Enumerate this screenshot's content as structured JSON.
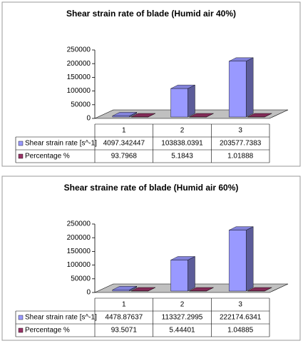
{
  "chart_data": [
    {
      "type": "bar",
      "title": "Shear strain rate of  blade (Humid air 40%)",
      "categories": [
        "1",
        "2",
        "3"
      ],
      "series": [
        {
          "name": "Shear strain rate [s^-1]",
          "color": "#9999ff",
          "values": [
            4097.342447,
            103838.0391,
            203577.7383
          ]
        },
        {
          "name": "Percentage %",
          "color": "#993366",
          "values": [
            93.7968,
            5.1843,
            1.01888
          ]
        }
      ],
      "ylim": [
        0,
        250000
      ],
      "yticks": [
        0,
        50000,
        100000,
        150000,
        200000,
        250000
      ]
    },
    {
      "type": "bar",
      "title": "Shear straine rate of blade (Humid air 60%)",
      "categories": [
        "1",
        "2",
        "3"
      ],
      "series": [
        {
          "name": "Shear strain rate [s^-1]",
          "color": "#9999ff",
          "values": [
            4478.87637,
            113327.2995,
            222174.6341
          ]
        },
        {
          "name": "Percentage %",
          "color": "#993366",
          "values": [
            93.5071,
            5.44401,
            1.04885
          ]
        }
      ],
      "ylim": [
        0,
        250000
      ],
      "yticks": [
        0,
        50000,
        100000,
        150000,
        200000,
        250000
      ]
    }
  ]
}
